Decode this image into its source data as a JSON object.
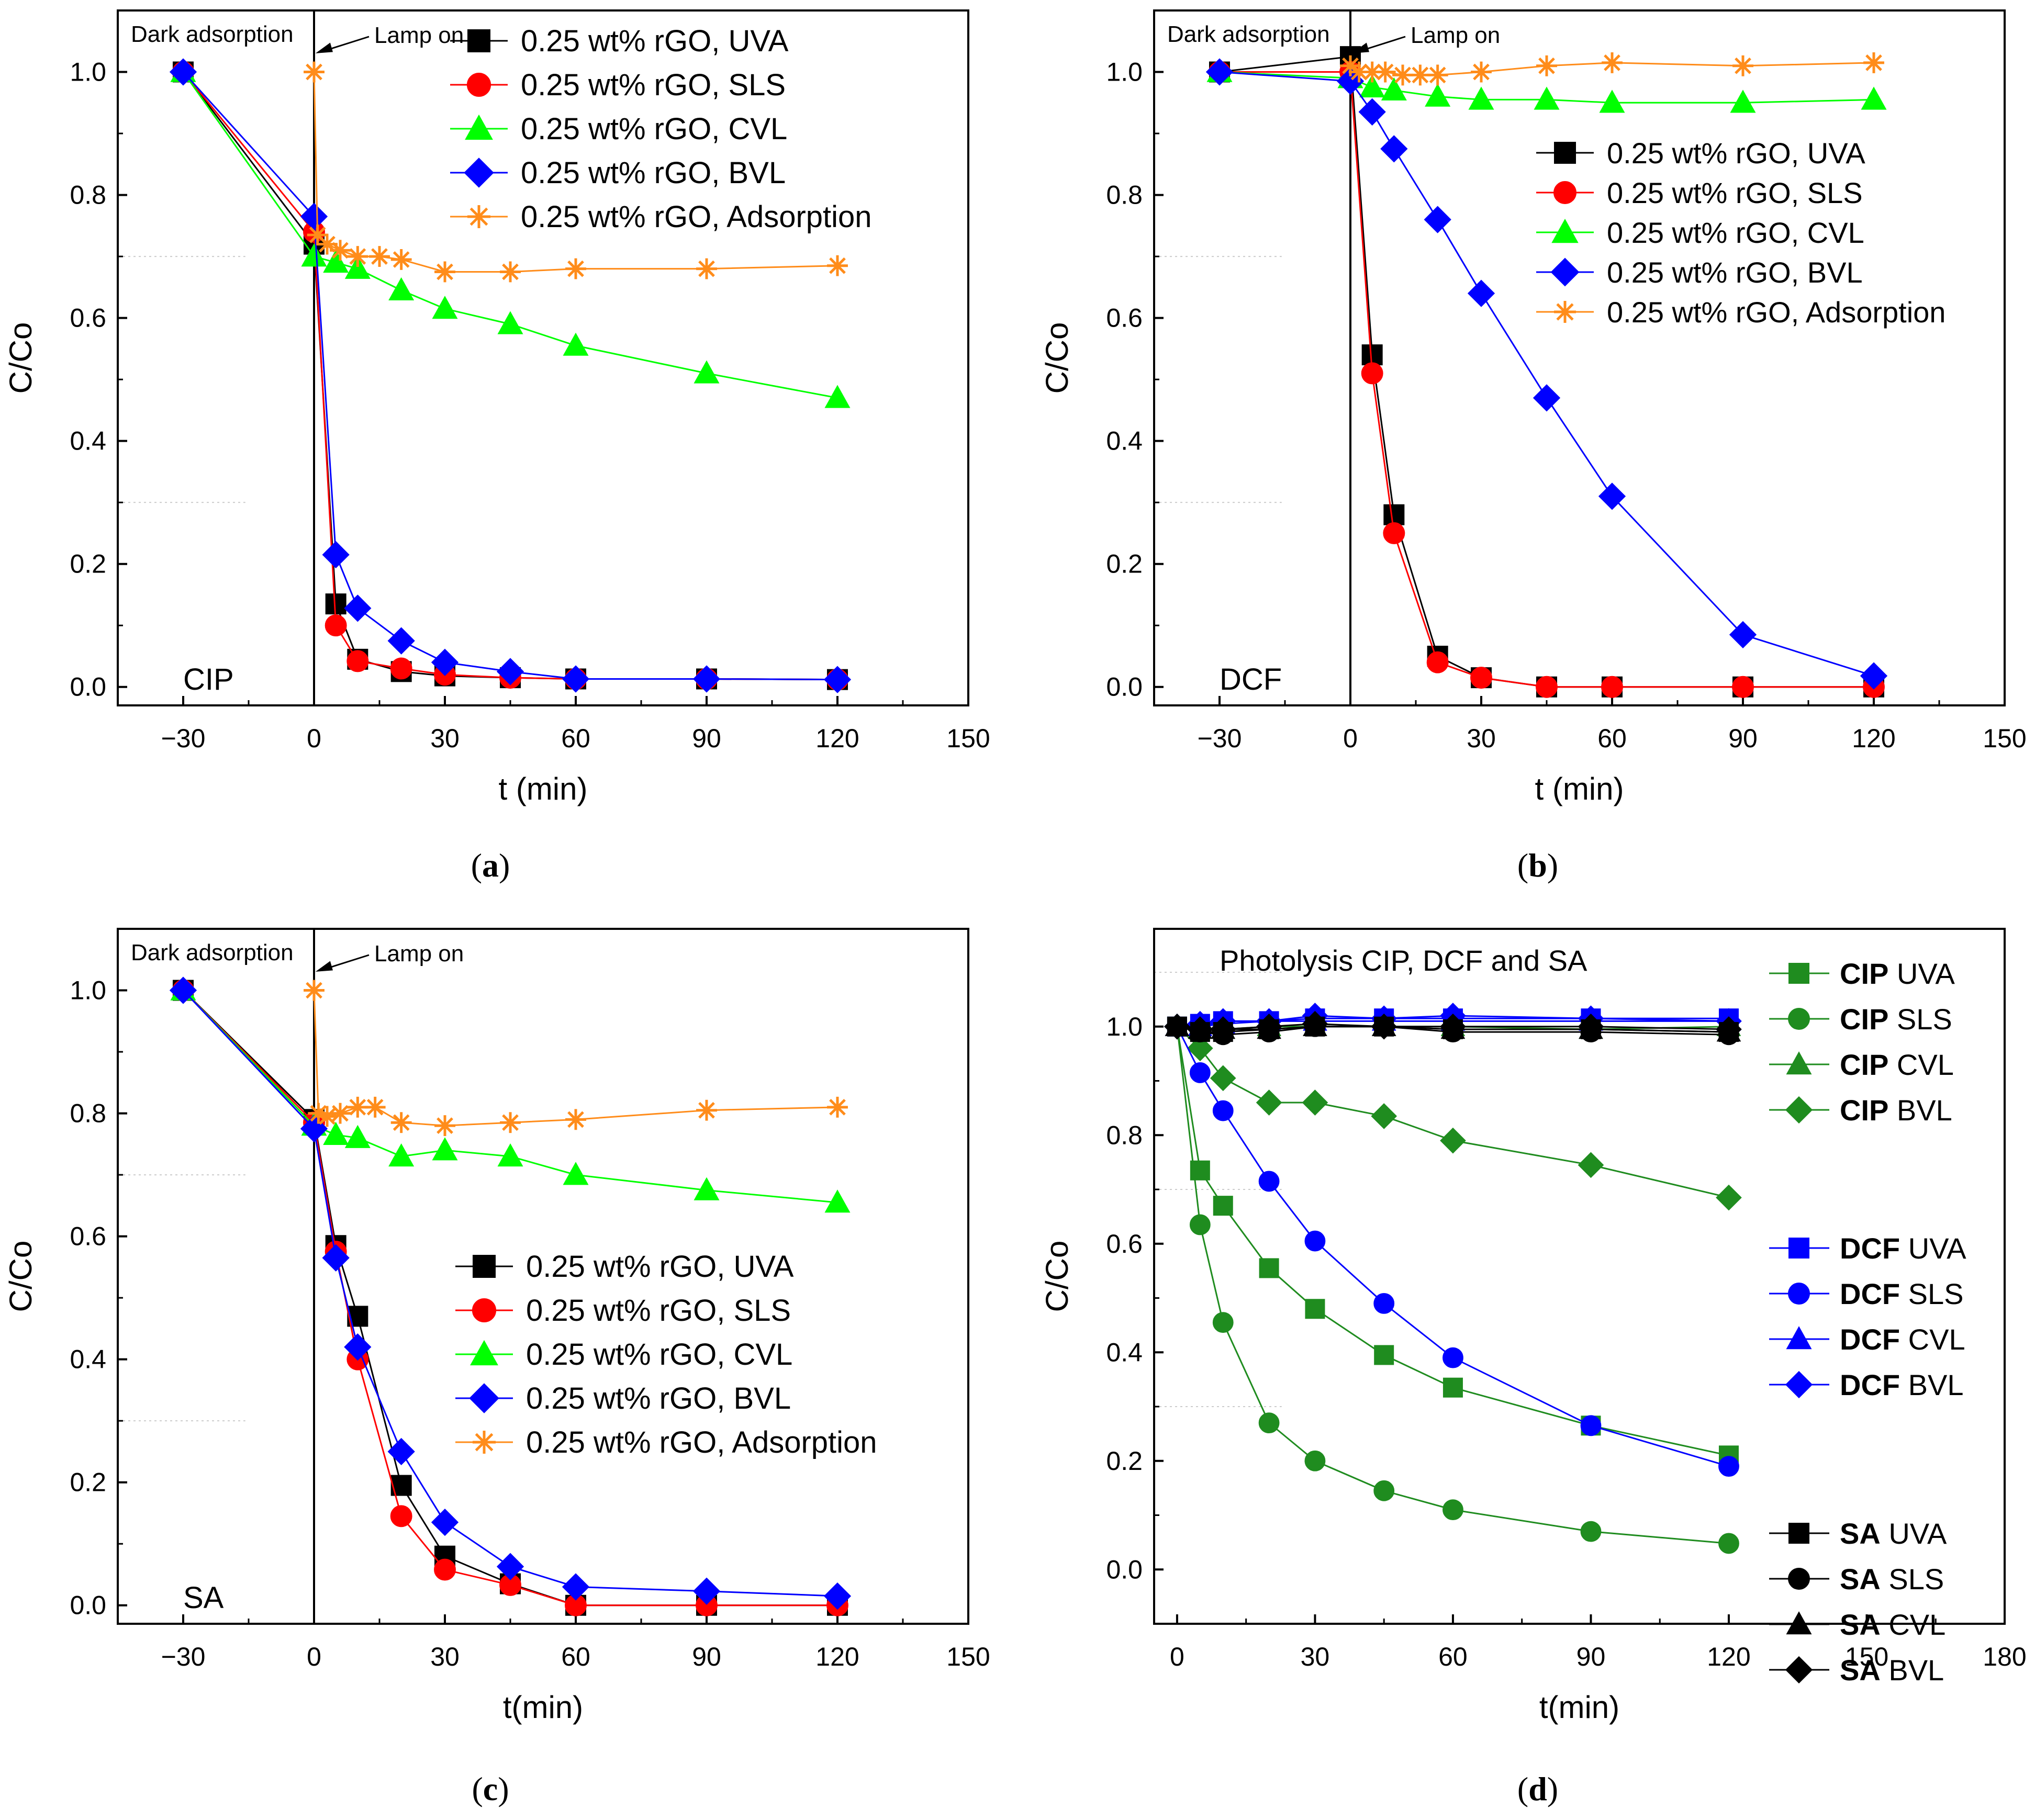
{
  "panel_labels": [
    "(a)",
    "(b)",
    "(c)",
    "(d)"
  ],
  "chart_data": [
    {
      "id": "a",
      "type": "line",
      "panel_label": "(a)",
      "title": "",
      "inner_label": "CIP",
      "xlabel": "t (min)",
      "ylabel": "C/Co",
      "xlim": [
        -45,
        150
      ],
      "ylim": [
        -0.03,
        1.1
      ],
      "xticks": [
        -30,
        0,
        30,
        60,
        90,
        120,
        150
      ],
      "xtick_labels": [
        "−30",
        "0",
        "30",
        "60",
        "90",
        "120",
        "150"
      ],
      "yticks": [
        0.0,
        0.2,
        0.4,
        0.6,
        0.8,
        1.0
      ],
      "ytick_labels": [
        "0.0",
        "0.2",
        "0.4",
        "0.6",
        "0.8",
        "1.0"
      ],
      "vline_x": 0,
      "annotations": {
        "dark": "Dark adsorption",
        "lamp": "Lamp on"
      },
      "legend_position": "top-right",
      "series": [
        {
          "name": "0.25 wt% rGO, UVA",
          "color": "#000000",
          "marker": "square",
          "x": [
            -30,
            0,
            5,
            10,
            20,
            30,
            45,
            60,
            90,
            120
          ],
          "y": [
            1.0,
            0.72,
            0.135,
            0.045,
            0.025,
            0.018,
            0.015,
            0.013,
            0.013,
            0.012
          ]
        },
        {
          "name": "0.25 wt% rGO, SLS",
          "color": "#ff0000",
          "marker": "circle",
          "x": [
            -30,
            0,
            5,
            10,
            20,
            30,
            45,
            60,
            90,
            120
          ],
          "y": [
            1.0,
            0.74,
            0.1,
            0.042,
            0.03,
            0.02,
            0.015,
            0.013,
            0.013,
            0.012
          ]
        },
        {
          "name": "0.25 wt% rGO, CVL",
          "color": "#00ff00",
          "marker": "triangle",
          "x": [
            -30,
            0,
            5,
            10,
            20,
            30,
            45,
            60,
            90,
            120
          ],
          "y": [
            1.0,
            0.7,
            0.69,
            0.68,
            0.645,
            0.615,
            0.59,
            0.555,
            0.51,
            0.47
          ]
        },
        {
          "name": "0.25 wt% rGO, BVL",
          "color": "#0000ff",
          "marker": "diamond",
          "x": [
            -30,
            0,
            5,
            10,
            20,
            30,
            45,
            60,
            90,
            120
          ],
          "y": [
            1.0,
            0.765,
            0.215,
            0.128,
            0.075,
            0.04,
            0.025,
            0.013,
            0.013,
            0.012
          ]
        },
        {
          "name": "0.25 wt% rGO, Adsorption",
          "color": "#ff8c1a",
          "marker": "asterisk",
          "x": [
            0,
            0.8,
            3,
            6,
            10,
            15,
            20,
            30,
            45,
            60,
            90,
            120
          ],
          "y": [
            1.0,
            0.735,
            0.72,
            0.71,
            0.7,
            0.7,
            0.695,
            0.675,
            0.675,
            0.68,
            0.68,
            0.685
          ]
        }
      ]
    },
    {
      "id": "b",
      "type": "line",
      "panel_label": "(b)",
      "title": "",
      "inner_label": "DCF",
      "xlabel": "t (min)",
      "ylabel": "C/Co",
      "xlim": [
        -45,
        150
      ],
      "ylim": [
        -0.03,
        1.1
      ],
      "xticks": [
        -30,
        0,
        30,
        60,
        90,
        120,
        150
      ],
      "xtick_labels": [
        "−30",
        "0",
        "30",
        "60",
        "90",
        "120",
        "150"
      ],
      "yticks": [
        0.0,
        0.2,
        0.4,
        0.6,
        0.8,
        1.0
      ],
      "ytick_labels": [
        "0.0",
        "0.2",
        "0.4",
        "0.6",
        "0.8",
        "1.0"
      ],
      "vline_x": 0,
      "annotations": {
        "dark": "Dark adsorption",
        "lamp": "Lamp on"
      },
      "legend_position": "upper-right-middle",
      "series": [
        {
          "name": "0.25 wt% rGO, UVA",
          "color": "#000000",
          "marker": "square",
          "x": [
            -30,
            0,
            5,
            10,
            20,
            30,
            45,
            60,
            90,
            120
          ],
          "y": [
            1.0,
            1.025,
            0.54,
            0.28,
            0.05,
            0.015,
            0.0,
            0.0,
            0.0,
            0.0
          ]
        },
        {
          "name": "0.25 wt% rGO, SLS",
          "color": "#ff0000",
          "marker": "circle",
          "x": [
            -30,
            0,
            5,
            10,
            20,
            30,
            45,
            60,
            90,
            120
          ],
          "y": [
            1.0,
            1.0,
            0.51,
            0.25,
            0.04,
            0.015,
            0.0,
            0.0,
            0.0,
            0.0
          ]
        },
        {
          "name": "0.25 wt% rGO, CVL",
          "color": "#00ff00",
          "marker": "triangle",
          "x": [
            -30,
            0,
            5,
            10,
            20,
            30,
            45,
            60,
            90,
            120
          ],
          "y": [
            1.0,
            0.99,
            0.975,
            0.97,
            0.96,
            0.955,
            0.955,
            0.95,
            0.95,
            0.955
          ]
        },
        {
          "name": "0.25 wt% rGO, BVL",
          "color": "#0000ff",
          "marker": "diamond",
          "x": [
            -30,
            0,
            5,
            10,
            20,
            30,
            45,
            60,
            90,
            120
          ],
          "y": [
            1.0,
            0.985,
            0.935,
            0.875,
            0.76,
            0.64,
            0.47,
            0.31,
            0.085,
            0.018
          ]
        },
        {
          "name": "0.25 wt% rGO, Adsorption",
          "color": "#ff8c1a",
          "marker": "asterisk",
          "x": [
            0,
            2,
            5,
            8,
            12,
            16,
            20,
            30,
            45,
            60,
            90,
            120
          ],
          "y": [
            1.01,
            1.0,
            1.0,
            1.0,
            0.995,
            0.995,
            0.995,
            1.0,
            1.01,
            1.015,
            1.01,
            1.015
          ]
        }
      ]
    },
    {
      "id": "c",
      "type": "line",
      "panel_label": "(c)",
      "title": "",
      "inner_label": "SA",
      "xlabel": "t(min)",
      "ylabel": "C/Co",
      "xlim": [
        -45,
        150
      ],
      "ylim": [
        -0.03,
        1.1
      ],
      "xticks": [
        -30,
        0,
        30,
        60,
        90,
        120,
        150
      ],
      "xtick_labels": [
        "−30",
        "0",
        "30",
        "60",
        "90",
        "120",
        "150"
      ],
      "yticks": [
        0.0,
        0.2,
        0.4,
        0.6,
        0.8,
        1.0
      ],
      "ytick_labels": [
        "0.0",
        "0.2",
        "0.4",
        "0.6",
        "0.8",
        "1.0"
      ],
      "vline_x": 0,
      "annotations": {
        "dark": "Dark adsorption",
        "lamp": "Lamp on"
      },
      "legend_position": "middle-right",
      "series": [
        {
          "name": "0.25 wt% rGO, UVA",
          "color": "#000000",
          "marker": "square",
          "x": [
            -30,
            0,
            5,
            10,
            20,
            30,
            45,
            60,
            90,
            120
          ],
          "y": [
            1.0,
            0.79,
            0.585,
            0.47,
            0.195,
            0.08,
            0.035,
            0.0,
            0.0,
            0.0
          ]
        },
        {
          "name": "0.25 wt% rGO, SLS",
          "color": "#ff0000",
          "marker": "circle",
          "x": [
            -30,
            0,
            5,
            10,
            20,
            30,
            45,
            60,
            90,
            120
          ],
          "y": [
            1.0,
            0.785,
            0.575,
            0.4,
            0.145,
            0.058,
            0.033,
            0.0,
            0.0,
            0.0
          ]
        },
        {
          "name": "0.25 wt% rGO, CVL",
          "color": "#00ff00",
          "marker": "triangle",
          "x": [
            -30,
            0,
            5,
            10,
            20,
            30,
            45,
            60,
            90,
            120
          ],
          "y": [
            1.0,
            0.78,
            0.765,
            0.76,
            0.73,
            0.74,
            0.73,
            0.7,
            0.675,
            0.655
          ]
        },
        {
          "name": "0.25 wt% rGO, BVL",
          "color": "#0000ff",
          "marker": "diamond",
          "x": [
            -30,
            0,
            5,
            10,
            20,
            30,
            45,
            60,
            90,
            120
          ],
          "y": [
            1.0,
            0.775,
            0.565,
            0.42,
            0.25,
            0.135,
            0.063,
            0.03,
            0.023,
            0.015
          ]
        },
        {
          "name": "0.25 wt% rGO, Adsorption",
          "color": "#ff8c1a",
          "marker": "asterisk",
          "x": [
            0,
            1,
            3,
            6,
            10,
            14,
            20,
            30,
            45,
            60,
            90,
            120
          ],
          "y": [
            1.0,
            0.8,
            0.795,
            0.8,
            0.81,
            0.81,
            0.785,
            0.78,
            0.785,
            0.79,
            0.805,
            0.81
          ]
        }
      ]
    },
    {
      "id": "d",
      "type": "line",
      "panel_label": "(d)",
      "title": "Photolysis CIP, DCF and SA",
      "inner_label": "",
      "xlabel": "t(min)",
      "ylabel": "C/Co",
      "xlim": [
        -5,
        180
      ],
      "ylim": [
        -0.1,
        1.18
      ],
      "xticks": [
        0,
        30,
        60,
        90,
        120,
        150,
        180
      ],
      "xtick_labels": [
        "0",
        "30",
        "60",
        "90",
        "120",
        "150",
        "180"
      ],
      "yticks": [
        0.0,
        0.2,
        0.4,
        0.6,
        0.8,
        1.0
      ],
      "ytick_labels": [
        "0.0",
        "0.2",
        "0.4",
        "0.6",
        "0.8",
        "1.0"
      ],
      "legend_position": "right",
      "series": [
        {
          "name": "CIP UVA",
          "bold": "CIP",
          "rest": "UVA",
          "color": "#1f8c1f",
          "marker": "square",
          "x": [
            0,
            5,
            10,
            20,
            30,
            45,
            60,
            90,
            120
          ],
          "y": [
            1.0,
            0.735,
            0.67,
            0.555,
            0.48,
            0.395,
            0.335,
            0.265,
            0.21
          ]
        },
        {
          "name": "CIP SLS",
          "bold": "CIP",
          "rest": "SLS",
          "color": "#1f8c1f",
          "marker": "circle",
          "x": [
            0,
            5,
            10,
            20,
            30,
            45,
            60,
            90,
            120
          ],
          "y": [
            1.0,
            0.635,
            0.455,
            0.27,
            0.2,
            0.145,
            0.11,
            0.07,
            0.048
          ]
        },
        {
          "name": "CIP CVL",
          "bold": "CIP",
          "rest": "CVL",
          "color": "#1f8c1f",
          "marker": "triangle",
          "x": [
            0,
            5,
            10,
            20,
            30,
            45,
            60,
            90,
            120
          ],
          "y": [
            1.0,
            0.995,
            0.995,
            1.0,
            1.0,
            1.0,
            1.0,
            0.995,
            1.0
          ]
        },
        {
          "name": "CIP BVL",
          "bold": "CIP",
          "rest": "BVL",
          "color": "#1f8c1f",
          "marker": "diamond",
          "x": [
            0,
            5,
            10,
            20,
            30,
            45,
            60,
            90,
            120
          ],
          "y": [
            1.0,
            0.96,
            0.905,
            0.86,
            0.86,
            0.835,
            0.79,
            0.745,
            0.685
          ]
        },
        {
          "name": "DCF UVA",
          "bold": "DCF",
          "rest": "UVA",
          "color": "#0000ff",
          "marker": "square",
          "x": [
            0,
            5,
            10,
            20,
            30,
            45,
            60,
            90,
            120
          ],
          "y": [
            1.0,
            1.005,
            1.01,
            1.01,
            1.015,
            1.015,
            1.015,
            1.015,
            1.015
          ]
        },
        {
          "name": "DCF SLS",
          "bold": "DCF",
          "rest": "SLS",
          "color": "#0000ff",
          "marker": "circle",
          "x": [
            0,
            5,
            10,
            20,
            30,
            45,
            60,
            90,
            120
          ],
          "y": [
            1.0,
            0.915,
            0.845,
            0.715,
            0.605,
            0.49,
            0.39,
            0.265,
            0.19
          ]
        },
        {
          "name": "DCF CVL",
          "bold": "DCF",
          "rest": "CVL",
          "color": "#0000ff",
          "marker": "triangle",
          "x": [
            0,
            5,
            10,
            20,
            30,
            45,
            60,
            90,
            120
          ],
          "y": [
            1.0,
            1.0,
            1.005,
            1.01,
            1.01,
            1.01,
            1.01,
            1.01,
            1.01
          ]
        },
        {
          "name": "DCF BVL",
          "bold": "DCF",
          "rest": "BVL",
          "color": "#0000ff",
          "marker": "diamond",
          "x": [
            0,
            5,
            10,
            20,
            30,
            45,
            60,
            90,
            120
          ],
          "y": [
            1.0,
            1.005,
            1.01,
            1.01,
            1.02,
            1.015,
            1.02,
            1.015,
            1.01
          ]
        },
        {
          "name": "SA UVA",
          "bold": "SA",
          "rest": "UVA",
          "color": "#000000",
          "marker": "square",
          "x": [
            0,
            5,
            10,
            20,
            30,
            45,
            60,
            90,
            120
          ],
          "y": [
            1.0,
            0.99,
            0.99,
            0.995,
            1.0,
            1.0,
            0.995,
            0.995,
            0.99
          ]
        },
        {
          "name": "SA SLS",
          "bold": "SA",
          "rest": "SLS",
          "color": "#000000",
          "marker": "circle",
          "x": [
            0,
            5,
            10,
            20,
            30,
            45,
            60,
            90,
            120
          ],
          "y": [
            1.0,
            0.99,
            0.985,
            0.99,
            1.0,
            1.0,
            0.99,
            0.99,
            0.985
          ]
        },
        {
          "name": "SA CVL",
          "bold": "SA",
          "rest": "CVL",
          "color": "#000000",
          "marker": "triangle",
          "x": [
            0,
            5,
            10,
            20,
            30,
            45,
            60,
            90,
            120
          ],
          "y": [
            1.0,
            0.995,
            0.995,
            0.995,
            1.0,
            1.0,
            0.995,
            0.995,
            0.99
          ]
        },
        {
          "name": "SA BVL",
          "bold": "SA",
          "rest": "BVL",
          "color": "#000000",
          "marker": "diamond",
          "x": [
            0,
            5,
            10,
            20,
            30,
            45,
            60,
            90,
            120
          ],
          "y": [
            1.0,
            0.995,
            0.995,
            1.0,
            1.005,
            1.0,
            1.0,
            1.0,
            0.995
          ]
        }
      ]
    }
  ]
}
